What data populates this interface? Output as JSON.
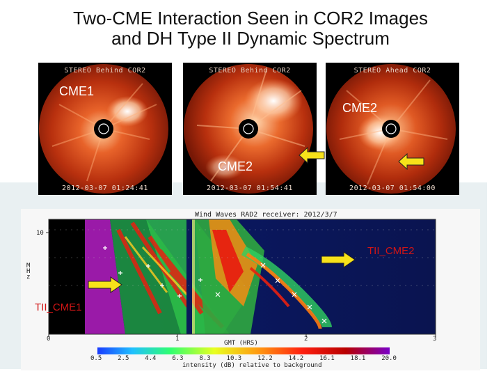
{
  "slide": {
    "title_line1": "Two-CME Interaction Seen in COR2 Images",
    "title_line2": "and DH Type II Dynamic Spectrum"
  },
  "panels": [
    {
      "top_caption": "STEREO Behind COR2",
      "bottom_caption": "2012-03-07 01:24:41"
    },
    {
      "top_caption": "STEREO Behind COR2",
      "bottom_caption": "2012-03-07 01:54:41"
    },
    {
      "top_caption": "STEREO Ahead COR2",
      "bottom_caption": "2012-03-07 01:54:00"
    }
  ],
  "labels": {
    "cme1": "CME1",
    "cme2_right": "CME2",
    "cme2_middle": "CME2",
    "tii_cme2": "TII_CME2",
    "tii_cme1": "TII_CME1"
  },
  "spectrum": {
    "title": "Wind Waves RAD2 receiver: 2012/3/7",
    "y_tick": "10",
    "y_label": "MHz",
    "x_ticks": [
      "0",
      "1",
      "2",
      "3"
    ],
    "x_label": "GMT (HRS)",
    "colorbar_ticks": [
      "0.5",
      "2.5",
      "4.4",
      "6.3",
      "8.3",
      "10.3",
      "12.2",
      "14.2",
      "16.1",
      "18.1",
      "20.0"
    ],
    "colorbar_label": "intensity (dB) relative to background"
  },
  "colors": {
    "arrow": "#f7e21a",
    "tii_label": "#d11515"
  }
}
